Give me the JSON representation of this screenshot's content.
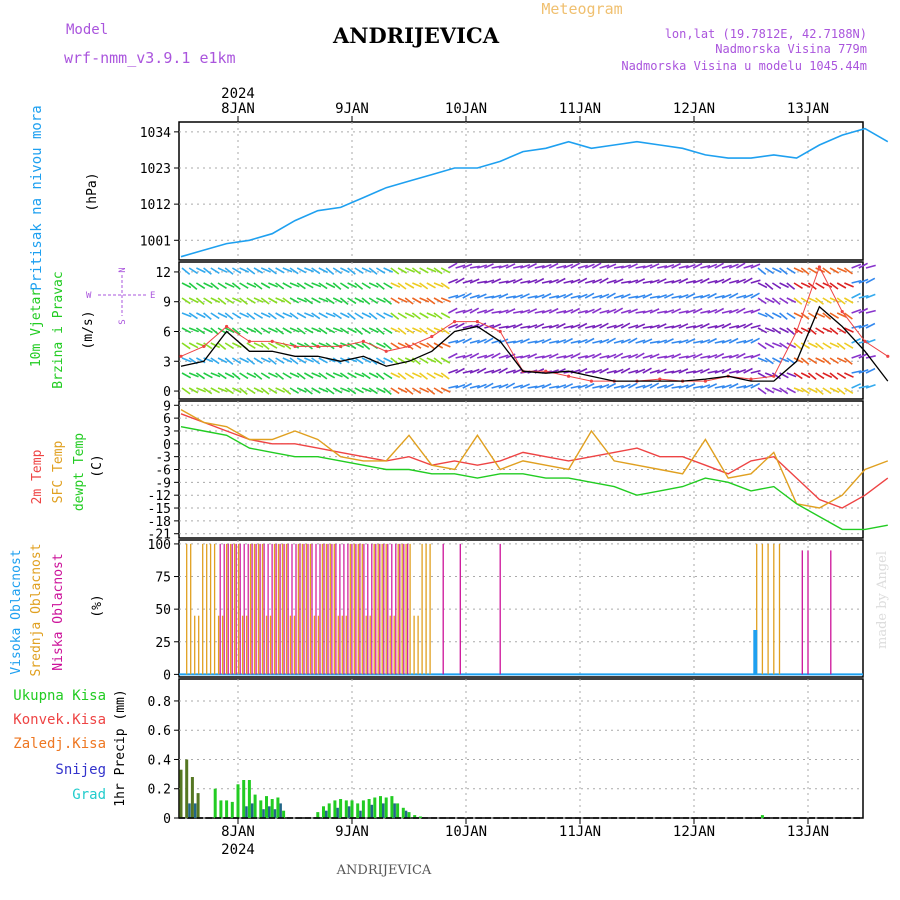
{
  "header": {
    "model_label": "Model",
    "model_name": "wrf-nmm_v3.9.1 e1km",
    "station": "ANDRIJEVICA",
    "meteogram_label": "Meteogram",
    "lonlat": "lon,lat (19.7812E, 42.7188N)",
    "altitude": "Nadmorska Visina 779m",
    "model_altitude": "Nadmorska Visina u modelu 1045.44m",
    "footer_station": "ANDRIJEVICA",
    "credit": "made by Angel",
    "year": "2024"
  },
  "colors": {
    "pressure": "#1ea0f0",
    "temp2m": "#ee4444",
    "sfc_temp": "#e0a020",
    "dewpt": "#22cc22",
    "wind_speed": "#000000",
    "wind_gust": "#ee4444",
    "high_cloud": "#1ea0f0",
    "mid_cloud": "#e0a020",
    "low_cloud": "#cc1199",
    "total_precip": "#22cc22",
    "conv_precip": "#ee4444",
    "frz_precip": "#ee7722",
    "snow": "#3333cc",
    "graupel": "#22cccc",
    "grid": "#aaaaaa"
  },
  "chart_data": [
    {
      "type": "line",
      "panel": "pressure",
      "ylabel_main": "Pritisak na nivou mora",
      "ylabel_unit": "(hPa)",
      "yticks": [
        1001,
        1012,
        1023,
        1034
      ],
      "ylim": [
        995,
        1037
      ],
      "x_days": [
        "8JAN",
        "9JAN",
        "10JAN",
        "11JAN",
        "12JAN",
        "13JAN"
      ],
      "series": [
        {
          "x": [
            0.0,
            0.2,
            0.4,
            0.6,
            0.8,
            1.0,
            1.2,
            1.4,
            1.6,
            1.8,
            2.0,
            2.2,
            2.4,
            2.6,
            2.8,
            3.0,
            3.2,
            3.4,
            3.6,
            3.8,
            4.0,
            4.2,
            4.4,
            4.6,
            4.8,
            5.0,
            5.2,
            5.4,
            5.6,
            5.8,
            6.0,
            6.2
          ],
          "values": [
            996,
            998,
            1000,
            1001,
            1003,
            1007,
            1010,
            1011,
            1014,
            1017,
            1019,
            1021,
            1023,
            1023,
            1025,
            1028,
            1029,
            1031,
            1029,
            1030,
            1031,
            1030,
            1029,
            1027,
            1026,
            1026,
            1027,
            1026,
            1030,
            1033,
            1035,
            1031
          ]
        }
      ]
    },
    {
      "type": "line",
      "panel": "wind",
      "ylabel_main": "10m Vjetar",
      "ylabel_sub": "Brzina i Pravac",
      "ylabel_unit": "(m/s)",
      "compass": [
        "W",
        "E",
        "N",
        "S"
      ],
      "yticks": [
        0,
        3,
        6,
        9,
        12
      ],
      "ylim": [
        -0.8,
        13
      ],
      "series": [
        {
          "name": "speed",
          "x": [
            0.0,
            0.2,
            0.4,
            0.6,
            0.8,
            1.0,
            1.2,
            1.4,
            1.6,
            1.8,
            2.0,
            2.2,
            2.4,
            2.6,
            2.8,
            3.0,
            3.2,
            3.4,
            3.6,
            3.8,
            4.0,
            4.2,
            4.4,
            4.6,
            4.8,
            5.0,
            5.2,
            5.4,
            5.6,
            5.8,
            6.0,
            6.2
          ],
          "values": [
            2.5,
            3.0,
            6.0,
            4.0,
            4.0,
            3.5,
            3.5,
            3.0,
            3.5,
            2.5,
            3.0,
            4.0,
            6.0,
            6.5,
            5.0,
            2.0,
            1.8,
            2.0,
            1.5,
            1.0,
            1.0,
            1.0,
            1.0,
            1.2,
            1.5,
            1.0,
            1.0,
            3.0,
            8.5,
            6.5,
            4.0,
            1.0
          ]
        },
        {
          "name": "gust",
          "x": [
            0.0,
            0.2,
            0.4,
            0.6,
            0.8,
            1.0,
            1.2,
            1.4,
            1.6,
            1.8,
            2.0,
            2.2,
            2.4,
            2.6,
            2.8,
            3.0,
            3.2,
            3.4,
            3.6,
            3.8,
            4.0,
            4.2,
            4.4,
            4.6,
            4.8,
            5.0,
            5.2,
            5.4,
            5.6,
            5.8,
            6.0,
            6.2
          ],
          "values": [
            3.5,
            4.5,
            6.5,
            5.0,
            5.0,
            4.5,
            4.5,
            4.5,
            5.0,
            4.0,
            4.5,
            5.5,
            7.0,
            7.0,
            6.0,
            2.0,
            2.0,
            1.5,
            1.0,
            1.0,
            1.0,
            1.2,
            1.0,
            1.0,
            1.5,
            1.2,
            1.5,
            6.0,
            12.5,
            8.0,
            5.0,
            3.5
          ]
        }
      ]
    },
    {
      "type": "line",
      "panel": "temperature",
      "ylabel_t2m": "2m Temp",
      "ylabel_sfc": "SFC Temp",
      "ylabel_dew": "dewpt Temp",
      "ylabel_unit": "(C)",
      "yticks": [
        -21,
        -18,
        -15,
        -12,
        -9,
        -6,
        -3,
        0,
        3,
        6,
        9
      ],
      "ylim": [
        -22,
        10
      ],
      "series": [
        {
          "name": "t2m",
          "x": [
            0.0,
            0.2,
            0.4,
            0.6,
            0.8,
            1.0,
            1.2,
            1.4,
            1.6,
            1.8,
            2.0,
            2.2,
            2.4,
            2.6,
            2.8,
            3.0,
            3.2,
            3.4,
            3.6,
            3.8,
            4.0,
            4.2,
            4.4,
            4.6,
            4.8,
            5.0,
            5.2,
            5.4,
            5.6,
            5.8,
            6.0,
            6.2
          ],
          "values": [
            7,
            5,
            3,
            1,
            0,
            0,
            -1,
            -2,
            -3,
            -4,
            -3,
            -5,
            -4,
            -5,
            -4,
            -2,
            -3,
            -4,
            -3,
            -2,
            -1,
            -3,
            -3,
            -5,
            -7,
            -4,
            -3,
            -8,
            -13,
            -15,
            -12,
            -8
          ]
        },
        {
          "name": "sfc",
          "x": [
            0.0,
            0.2,
            0.4,
            0.6,
            0.8,
            1.0,
            1.2,
            1.4,
            1.6,
            1.8,
            2.0,
            2.2,
            2.4,
            2.6,
            2.8,
            3.0,
            3.2,
            3.4,
            3.6,
            3.8,
            4.0,
            4.2,
            4.4,
            4.6,
            4.8,
            5.0,
            5.2,
            5.4,
            5.6,
            5.8,
            6.0,
            6.2
          ],
          "values": [
            8,
            5,
            4,
            1,
            1,
            3,
            1,
            -3,
            -4,
            -4,
            2,
            -5,
            -6,
            2,
            -6,
            -4,
            -5,
            -6,
            3,
            -4,
            -5,
            -6,
            -7,
            1,
            -8,
            -7,
            -2,
            -14,
            -15,
            -12,
            -6,
            -4
          ]
        },
        {
          "name": "dewpt",
          "x": [
            0.0,
            0.2,
            0.4,
            0.6,
            0.8,
            1.0,
            1.2,
            1.4,
            1.6,
            1.8,
            2.0,
            2.2,
            2.4,
            2.6,
            2.8,
            3.0,
            3.2,
            3.4,
            3.6,
            3.8,
            4.0,
            4.2,
            4.4,
            4.6,
            4.8,
            5.0,
            5.2,
            5.4,
            5.6,
            5.8,
            6.0,
            6.2
          ],
          "values": [
            4,
            3,
            2,
            -1,
            -2,
            -3,
            -3,
            -4,
            -5,
            -6,
            -6,
            -7,
            -7,
            -8,
            -7,
            -7,
            -8,
            -8,
            -9,
            -10,
            -12,
            -11,
            -10,
            -8,
            -9,
            -11,
            -10,
            -14,
            -17,
            -20,
            -20,
            -19
          ]
        }
      ]
    },
    {
      "type": "bar",
      "panel": "clouds",
      "ylabel_high": "Visoka Oblacnost",
      "ylabel_mid": "Srednja Oblacnost",
      "ylabel_low": "Niska Oblacnost",
      "ylabel_unit": "(%)",
      "yticks": [
        0,
        25,
        50,
        75,
        100
      ],
      "ylim": [
        -2,
        103
      ]
    },
    {
      "type": "bar",
      "panel": "precipitation",
      "legend": [
        "Ukupna Kisa",
        "Konvek.Kisa",
        "Zaledj.Kisa",
        "Snijeg",
        "Grad"
      ],
      "ylabel_unit": "1hr Precip (mm)",
      "yticks": [
        0,
        0.2,
        0.4,
        0.6,
        0.8
      ],
      "ylim": [
        0,
        0.95
      ],
      "totals": {
        "x": [
          0.0,
          0.05,
          0.1,
          0.15,
          0.3,
          0.35,
          0.4,
          0.45,
          0.5,
          0.55,
          0.6,
          0.65,
          0.7,
          0.75,
          0.8,
          0.85,
          0.9,
          1.2,
          1.25,
          1.3,
          1.35,
          1.4,
          1.45,
          1.5,
          1.55,
          1.6,
          1.65,
          1.7,
          1.75,
          1.8,
          1.85,
          1.9,
          1.95,
          2.0,
          2.05,
          2.1,
          5.1
        ],
        "values": [
          0.33,
          0.4,
          0.28,
          0.17,
          0.2,
          0.12,
          0.12,
          0.11,
          0.23,
          0.26,
          0.26,
          0.16,
          0.12,
          0.15,
          0.13,
          0.14,
          0.05,
          0.04,
          0.08,
          0.1,
          0.12,
          0.13,
          0.12,
          0.12,
          0.1,
          0.12,
          0.13,
          0.14,
          0.15,
          0.14,
          0.15,
          0.1,
          0.07,
          0.04,
          0.02,
          0.01,
          0.02
        ]
      },
      "snow": {
        "x": [
          0.05,
          0.1,
          0.55,
          0.6,
          0.7,
          0.75,
          0.8,
          0.85,
          1.25,
          1.35,
          1.45,
          1.55,
          1.65,
          1.75,
          1.85,
          1.95
        ],
        "values": [
          0.1,
          0.1,
          0.08,
          0.1,
          0.06,
          0.08,
          0.06,
          0.1,
          0.05,
          0.07,
          0.08,
          0.05,
          0.09,
          0.1,
          0.1,
          0.05
        ]
      }
    }
  ]
}
